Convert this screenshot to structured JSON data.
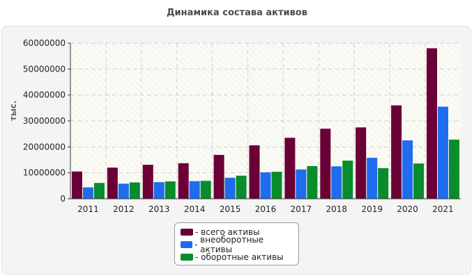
{
  "chart_data": {
    "type": "bar",
    "title": "Динамика состава активов",
    "ylabel": "тыс.",
    "xlabel": "",
    "ylim": [
      0,
      60000000
    ],
    "yticks": [
      "0",
      "10000000",
      "20000000",
      "30000000",
      "40000000",
      "50000000",
      "60000000"
    ],
    "categories": [
      "2011",
      "2012",
      "2013",
      "2014",
      "2015",
      "2016",
      "2017",
      "2018",
      "2019",
      "2020",
      "2021"
    ],
    "series": [
      {
        "name": "всего активы",
        "color": "#6a0035",
        "values": [
          10500000,
          12000000,
          13100000,
          13700000,
          16900000,
          20600000,
          23500000,
          27000000,
          27500000,
          36000000,
          58000000
        ]
      },
      {
        "name": "внеоборотные активы",
        "color": "#1e6cf0",
        "values": [
          4400000,
          5800000,
          6400000,
          6800000,
          8100000,
          10200000,
          11300000,
          12500000,
          15800000,
          22500000,
          35500000
        ]
      },
      {
        "name": "оборотные активы",
        "color": "#088c2c",
        "values": [
          6100000,
          6300000,
          6700000,
          6900000,
          8900000,
          10400000,
          12600000,
          14700000,
          11800000,
          13600000,
          22800000
        ]
      }
    ],
    "legend_prefix": "- ",
    "grid": true,
    "legend_position": "bottom"
  }
}
